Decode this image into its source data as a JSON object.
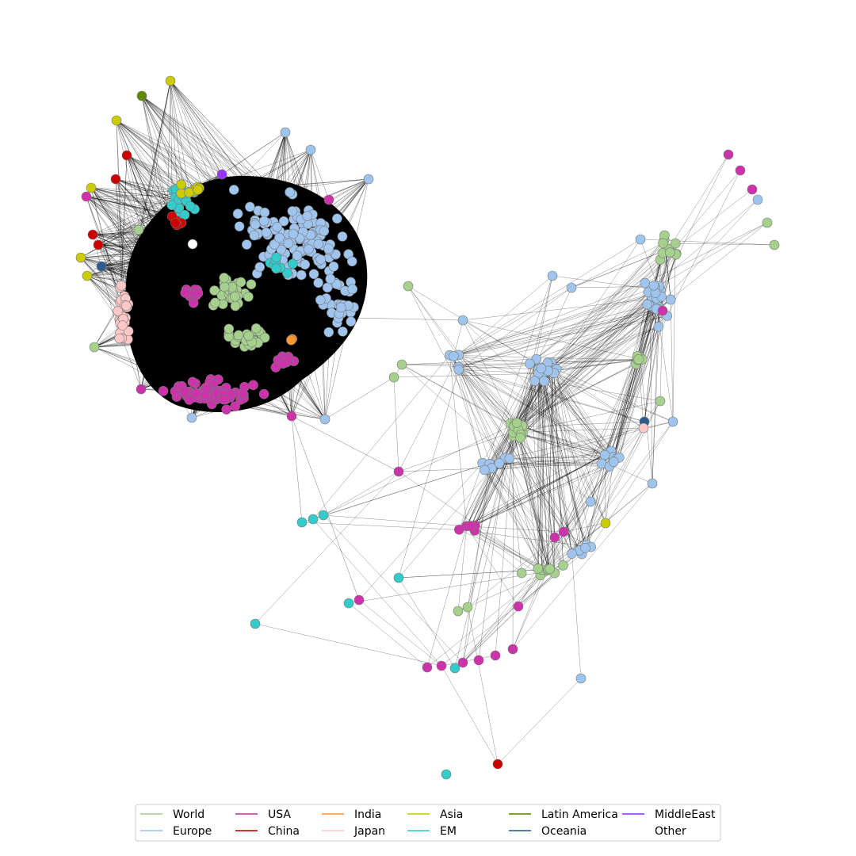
{
  "legend": [
    {
      "name": "World",
      "color": "#a5d18d"
    },
    {
      "name": "Europe",
      "color": "#9fc5ee"
    },
    {
      "name": "USA",
      "color": "#cc33aa"
    },
    {
      "name": "China",
      "color": "#cc0000"
    },
    {
      "name": "India",
      "color": "#ff9933"
    },
    {
      "name": "Japan",
      "color": "#ffc8c8"
    },
    {
      "name": "Asia",
      "color": "#cccc00"
    },
    {
      "name": "EM",
      "color": "#33cccc"
    },
    {
      "name": "Latin America",
      "color": "#5c8a00"
    },
    {
      "name": "Oceania",
      "color": "#2b5c8a"
    },
    {
      "name": "MiddleEast",
      "color": "#9933ff"
    },
    {
      "name": "Other",
      "color": "#ffffff"
    }
  ]
}
